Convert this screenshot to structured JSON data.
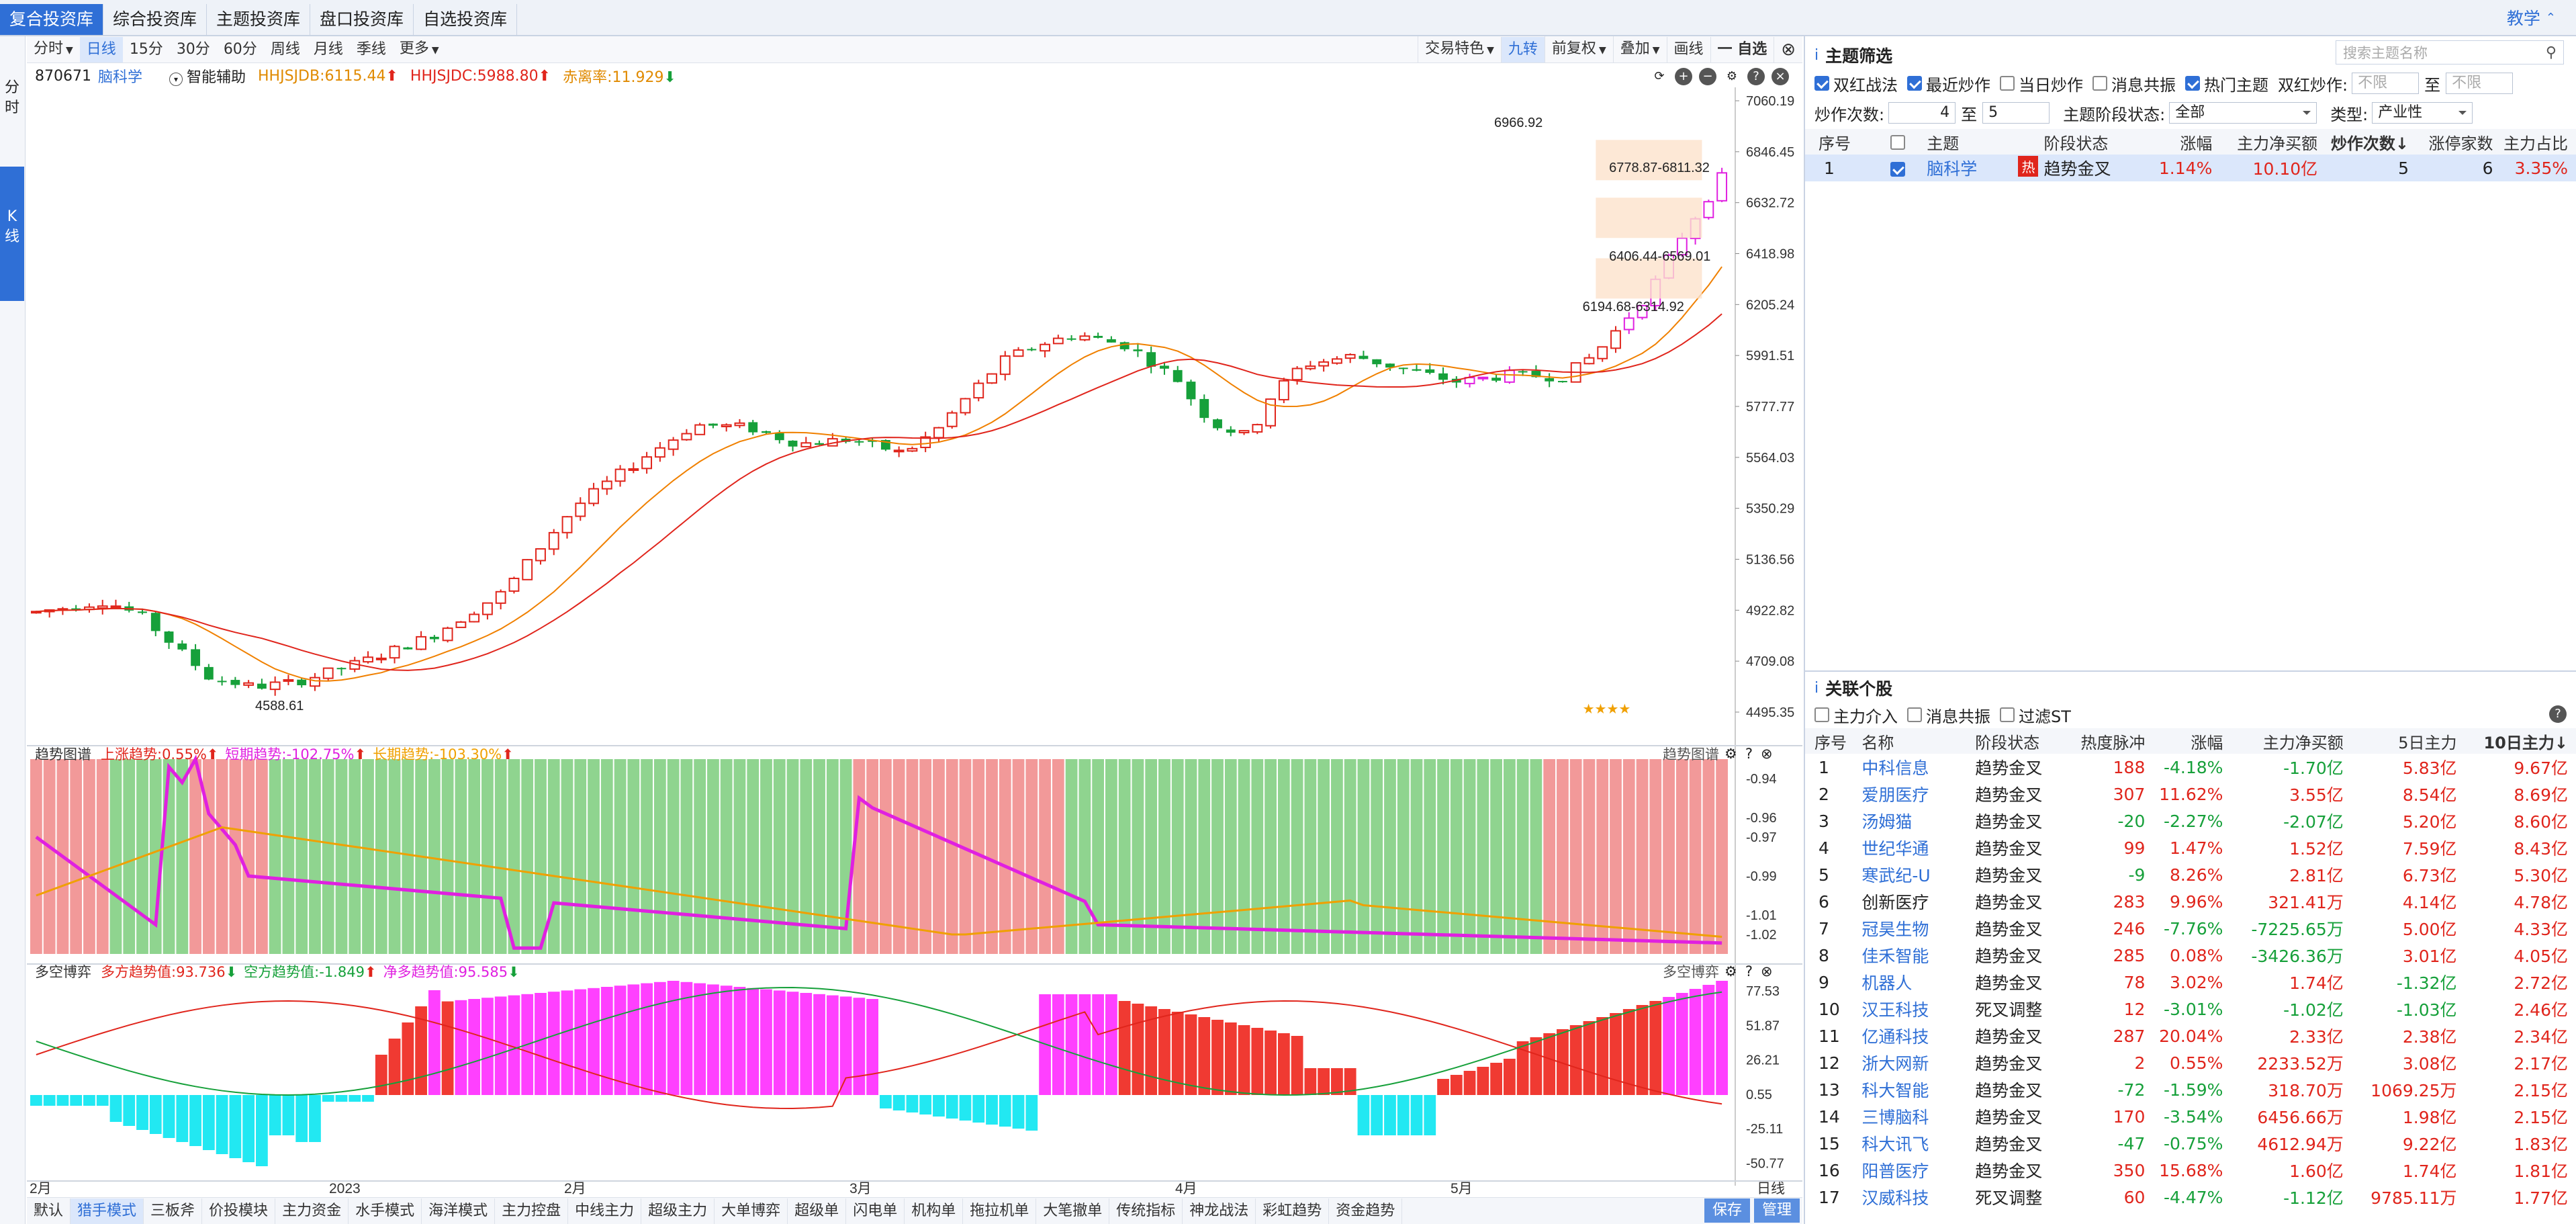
{
  "top_tabs": [
    "复合投资库",
    "综合投资库",
    "主题投资库",
    "盘口投资库",
    "自选投资库"
  ],
  "teach": "教学",
  "left_rail": {
    "fen": "分\n时",
    "k": "K\n线"
  },
  "periods": [
    "分时",
    "日线",
    "15分",
    "30分",
    "60分",
    "周线",
    "月线",
    "季线",
    "更多"
  ],
  "toolbar_right": [
    "交易特色",
    "九转",
    "前复权",
    "叠加",
    "画线",
    "一 自选"
  ],
  "info": {
    "code": "870671",
    "name": "脑科学",
    "assist": "智能辅助",
    "hhjsjdb": "HHJSJDB:6115.44",
    "hhjsjdc": "HHJSJDC:5988.80",
    "chililv": "赤离率:11.929"
  },
  "price_axis": [
    "7060.19",
    "6846.45",
    "6632.72",
    "6418.98",
    "6205.24",
    "5991.51",
    "5777.77",
    "5564.03",
    "5350.29",
    "5136.56",
    "4922.82",
    "4709.08",
    "4495.35"
  ],
  "annot": {
    "high": "6966.92",
    "r1": "6778.87-6811.32",
    "r2": "6406.44-6569.01",
    "r3": "6194.68-6314.92",
    "low": "4588.61",
    "stars": "★★★★"
  },
  "trend_panel": {
    "title": "趋势图谱",
    "up": "上涨趋势:0.55%",
    "short": "短期趋势:-102.75%",
    "long": "长期趋势:-103.30%",
    "right_label": "趋势图谱",
    "axis": [
      "-0.94",
      "-0.96",
      "-0.97",
      "-0.99",
      "-1.01",
      "-1.02"
    ]
  },
  "bull_panel": {
    "title": "多空博弈",
    "bull": "多方趋势值:93.736",
    "bear": "空方趋势值:-1.849",
    "net": "净多趋势值:95.585",
    "right_label": "多空博弈",
    "axis": [
      "77.53",
      "51.87",
      "26.21",
      "0.55",
      "-25.11",
      "-50.77"
    ]
  },
  "x_axis": [
    "2月",
    "2023",
    "2月",
    "3月",
    "4月",
    "5月"
  ],
  "x_right": "日线",
  "bottom_tabs": [
    "默认",
    "猎手模式",
    "三板斧",
    "价投模块",
    "主力资金",
    "水手模式",
    "海洋模式",
    "主力控盘",
    "中线主力",
    "超级主力",
    "大单博弈",
    "超级单",
    "闪电单",
    "机构单",
    "拖拉机单",
    "大笔撤单",
    "传统指标",
    "神龙战法",
    "彩虹趋势",
    "资金趋势"
  ],
  "bottom_right": [
    "保存",
    "管理"
  ],
  "theme": {
    "title": "主题筛选",
    "search_placeholder": "搜索主题名称",
    "filters": [
      {
        "label": "双红战法",
        "on": true
      },
      {
        "label": "最近炒作",
        "on": true
      },
      {
        "label": "当日炒作",
        "on": false
      },
      {
        "label": "消息共振",
        "on": false
      },
      {
        "label": "热门主题",
        "on": true
      }
    ],
    "double_red_label": "双红炒作:",
    "unlimited1": "不限",
    "to": "至",
    "unlimited2": "不限",
    "count_label": "炒作次数:",
    "count_from": "4",
    "count_to": "5",
    "stage_label": "主题阶段状态:",
    "stage_value": "全部",
    "type_label": "类型:",
    "type_value": "产业性",
    "headers": [
      "序号",
      "",
      "主题",
      "阶段状态",
      "涨幅",
      "主力净买额",
      "炒作次数↓",
      "涨停家数",
      "主力占比"
    ],
    "row": {
      "idx": "1",
      "name": "脑科学",
      "hot": "热",
      "stage": "趋势金叉",
      "chg": "1.14%",
      "net": "10.10亿",
      "count": "5",
      "limit": "6",
      "ratio": "3.35%"
    }
  },
  "stocks": {
    "title": "关联个股",
    "filters": [
      "主力介入",
      "消息共振",
      "过滤ST"
    ],
    "headers": [
      "序号",
      "名称",
      "阶段状态",
      "热度脉冲",
      "涨幅",
      "主力净买额",
      "5日主力",
      "10日主力↓"
    ],
    "rows": [
      [
        "1",
        "中科信息",
        "趋势金叉",
        "188",
        "-4.18%",
        "-1.70亿",
        "5.83亿",
        "9.67亿"
      ],
      [
        "2",
        "爱朋医疗",
        "趋势金叉",
        "307",
        "11.62%",
        "3.55亿",
        "8.54亿",
        "8.69亿"
      ],
      [
        "3",
        "汤姆猫",
        "趋势金叉",
        "-20",
        "-2.27%",
        "-2.07亿",
        "5.20亿",
        "8.60亿"
      ],
      [
        "4",
        "世纪华通",
        "趋势金叉",
        "99",
        "1.47%",
        "1.52亿",
        "7.59亿",
        "8.43亿"
      ],
      [
        "5",
        "寒武纪-U",
        "趋势金叉",
        "-9",
        "8.26%",
        "2.81亿",
        "6.73亿",
        "5.30亿"
      ],
      [
        "6",
        "创新医疗",
        "趋势金叉",
        "283",
        "9.96%",
        "321.41万",
        "4.14亿",
        "4.78亿"
      ],
      [
        "7",
        "冠昊生物",
        "趋势金叉",
        "246",
        "-7.76%",
        "-7225.65万",
        "5.00亿",
        "4.33亿"
      ],
      [
        "8",
        "佳禾智能",
        "趋势金叉",
        "285",
        "0.08%",
        "-3426.36万",
        "3.01亿",
        "4.05亿"
      ],
      [
        "9",
        "机器人",
        "趋势金叉",
        "78",
        "3.02%",
        "1.74亿",
        "-1.32亿",
        "2.72亿"
      ],
      [
        "10",
        "汉王科技",
        "死叉调整",
        "12",
        "-3.01%",
        "-1.02亿",
        "-1.03亿",
        "2.46亿"
      ],
      [
        "11",
        "亿通科技",
        "趋势金叉",
        "287",
        "20.04%",
        "2.33亿",
        "2.38亿",
        "2.34亿"
      ],
      [
        "12",
        "浙大网新",
        "趋势金叉",
        "2",
        "0.55%",
        "2233.52万",
        "3.08亿",
        "2.17亿"
      ],
      [
        "13",
        "科大智能",
        "趋势金叉",
        "-72",
        "-1.59%",
        "318.70万",
        "1069.25万",
        "2.15亿"
      ],
      [
        "14",
        "三博脑科",
        "趋势金叉",
        "170",
        "-3.54%",
        "6456.66万",
        "1.98亿",
        "2.15亿"
      ],
      [
        "15",
        "科大讯飞",
        "趋势金叉",
        "-47",
        "-0.75%",
        "4612.94万",
        "9.22亿",
        "1.83亿"
      ],
      [
        "16",
        "阳普医疗",
        "趋势金叉",
        "350",
        "15.68%",
        "1.60亿",
        "1.74亿",
        "1.81亿"
      ],
      [
        "17",
        "汉威科技",
        "死叉调整",
        "60",
        "-4.47%",
        "-1.12亿",
        "9785.11万",
        "1.77亿"
      ]
    ]
  },
  "colors": {
    "up": "#e0251c",
    "down": "#16a03a",
    "accent": "#2f6fd6",
    "magenta": "#e020e0",
    "orange": "#f0a000",
    "cyan": "#14c8e0"
  }
}
